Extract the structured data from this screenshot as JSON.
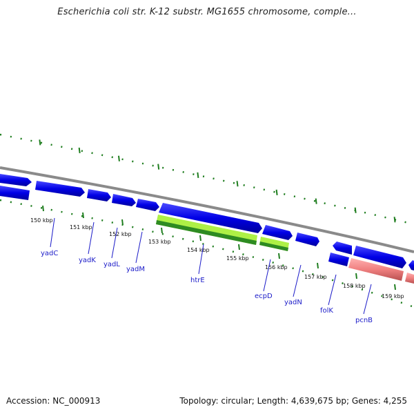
{
  "title": "Escherichia coli str. K-12 substr. MG1655 chromosome, comple...",
  "footer": {
    "accession": "Accession: NC_000913",
    "topology": "Topology: circular; Length: 4,639,675 bp; Genes: 4,255"
  },
  "colors": {
    "backbone": "#8c8c8c",
    "gene_forward": "#0000e0",
    "gene_reverse": "#0000e0",
    "rna_light": "#aef046",
    "rna_dark": "#2e8b22",
    "pseudo_pink": "#f08080",
    "tick_green": "#1e7d1e",
    "label_blue": "#1a1ac8"
  },
  "ticks": [
    "150 kbp",
    "151 kbp",
    "152 kbp",
    "153 kbp",
    "154 kbp",
    "155 kbp",
    "156 kbp",
    "157 kbp",
    "158 kbp",
    "159 kbp"
  ],
  "genes": [
    "yadC",
    "yadK",
    "yadL",
    "yadM",
    "htrE",
    "ecpD",
    "yadN",
    "folK",
    "pcnB"
  ]
}
